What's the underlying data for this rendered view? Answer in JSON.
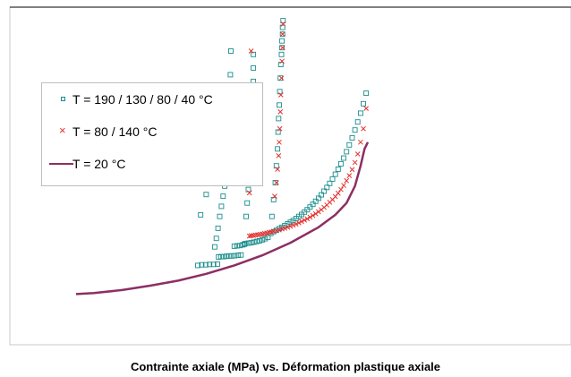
{
  "chart_data": {
    "type": "scatter",
    "title": "Contrainte axiale (MPa) vs. Déformation plastique axiale",
    "xlabel": "",
    "ylabel": "",
    "xlim": [
      0,
      1
    ],
    "ylim": [
      0,
      1
    ],
    "grid": false,
    "legend_position": "left",
    "series": [
      {
        "name": "T = 190 / 130 / 80 / 40 °C",
        "marker": "open-square",
        "color": "#1a8c8c",
        "x": [
          0.335,
          0.342,
          0.349,
          0.356,
          0.363,
          0.37,
          0.372,
          0.376,
          0.381,
          0.386,
          0.391,
          0.396,
          0.401,
          0.407,
          0.412,
          0.34,
          0.35,
          0.352,
          0.365,
          0.368,
          0.371,
          0.374,
          0.377,
          0.38,
          0.383,
          0.385,
          0.387,
          0.388,
          0.389,
          0.39,
          0.391,
          0.392,
          0.393,
          0.394,
          0.4,
          0.405,
          0.41,
          0.415,
          0.418,
          0.42,
          0.425,
          0.43,
          0.435,
          0.44,
          0.445,
          0.45,
          0.455,
          0.46,
          0.421,
          0.423,
          0.425,
          0.427,
          0.429,
          0.431,
          0.432,
          0.433,
          0.433,
          0.434,
          0.434,
          0.434,
          0.434,
          0.465,
          0.47,
          0.475,
          0.48,
          0.485,
          0.49,
          0.495,
          0.5,
          0.505,
          0.51,
          0.515,
          0.52,
          0.525,
          0.53,
          0.535,
          0.54,
          0.545,
          0.55,
          0.555,
          0.56,
          0.565,
          0.57,
          0.575,
          0.58,
          0.585,
          0.59,
          0.595,
          0.6,
          0.605,
          0.61,
          0.615,
          0.62,
          0.625,
          0.63,
          0.635,
          0.467,
          0.47,
          0.473,
          0.475,
          0.477,
          0.478,
          0.479,
          0.48,
          0.481,
          0.482,
          0.483,
          0.484,
          0.485,
          0.485,
          0.486,
          0.486,
          0.487
        ],
        "y": [
          0.235,
          0.237,
          0.237,
          0.238,
          0.238,
          0.239,
          0.26,
          0.261,
          0.261,
          0.262,
          0.263,
          0.263,
          0.264,
          0.265,
          0.266,
          0.385,
          0.445,
          0.655,
          0.29,
          0.315,
          0.345,
          0.38,
          0.41,
          0.44,
          0.47,
          0.5,
          0.53,
          0.56,
          0.6,
          0.64,
          0.69,
          0.74,
          0.8,
          0.87,
          0.292,
          0.293,
          0.294,
          0.296,
          0.298,
          0.3,
          0.301,
          0.302,
          0.304,
          0.306,
          0.308,
          0.311,
          0.314,
          0.318,
          0.38,
          0.42,
          0.46,
          0.5,
          0.54,
          0.58,
          0.62,
          0.66,
          0.7,
          0.74,
          0.78,
          0.82,
          0.86,
          0.33,
          0.335,
          0.339,
          0.344,
          0.348,
          0.353,
          0.358,
          0.363,
          0.368,
          0.374,
          0.38,
          0.386,
          0.393,
          0.4,
          0.408,
          0.416,
          0.425,
          0.434,
          0.444,
          0.455,
          0.466,
          0.478,
          0.491,
          0.505,
          0.52,
          0.536,
          0.553,
          0.572,
          0.592,
          0.613,
          0.636,
          0.66,
          0.686,
          0.714,
          0.745,
          0.38,
          0.43,
          0.48,
          0.53,
          0.58,
          0.63,
          0.67,
          0.71,
          0.75,
          0.79,
          0.83,
          0.86,
          0.88,
          0.9,
          0.92,
          0.94,
          0.96
        ]
      },
      {
        "name": "T = 80 / 140 °C",
        "marker": "x",
        "color": "#e3312e",
        "x": [
          0.427,
          0.43,
          0.434,
          0.438,
          0.442,
          0.446,
          0.45,
          0.454,
          0.458,
          0.462,
          0.466,
          0.47,
          0.475,
          0.48,
          0.485,
          0.49,
          0.495,
          0.5,
          0.505,
          0.51,
          0.515,
          0.52,
          0.525,
          0.53,
          0.535,
          0.54,
          0.545,
          0.55,
          0.555,
          0.56,
          0.565,
          0.57,
          0.575,
          0.58,
          0.585,
          0.59,
          0.595,
          0.6,
          0.605,
          0.61,
          0.615,
          0.62,
          0.625,
          0.63,
          0.635,
          0.43,
          0.472,
          0.475,
          0.477,
          0.479,
          0.48,
          0.481,
          0.482,
          0.483,
          0.484,
          0.485,
          0.486,
          0.486,
          0.487,
          0.427
        ],
        "y": [
          0.322,
          0.323,
          0.324,
          0.325,
          0.326,
          0.327,
          0.328,
          0.33,
          0.331,
          0.333,
          0.334,
          0.336,
          0.338,
          0.34,
          0.343,
          0.345,
          0.348,
          0.351,
          0.354,
          0.357,
          0.361,
          0.365,
          0.369,
          0.373,
          0.378,
          0.383,
          0.388,
          0.394,
          0.4,
          0.407,
          0.414,
          0.422,
          0.43,
          0.439,
          0.449,
          0.46,
          0.472,
          0.486,
          0.501,
          0.519,
          0.54,
          0.565,
          0.6,
          0.64,
          0.7,
          0.87,
          0.44,
          0.48,
          0.52,
          0.56,
          0.6,
          0.64,
          0.69,
          0.74,
          0.79,
          0.84,
          0.88,
          0.92,
          0.95,
          0.45
        ]
      },
      {
        "name": "T = 20 °C",
        "marker": "line",
        "color": "#8c2f64",
        "x": [
          0.118,
          0.15,
          0.2,
          0.25,
          0.3,
          0.35,
          0.4,
          0.45,
          0.5,
          0.55,
          0.58,
          0.6,
          0.615,
          0.625,
          0.632,
          0.638
        ],
        "y": [
          0.15,
          0.153,
          0.162,
          0.175,
          0.19,
          0.21,
          0.235,
          0.265,
          0.302,
          0.348,
          0.385,
          0.42,
          0.47,
          0.53,
          0.58,
          0.6
        ]
      }
    ]
  }
}
